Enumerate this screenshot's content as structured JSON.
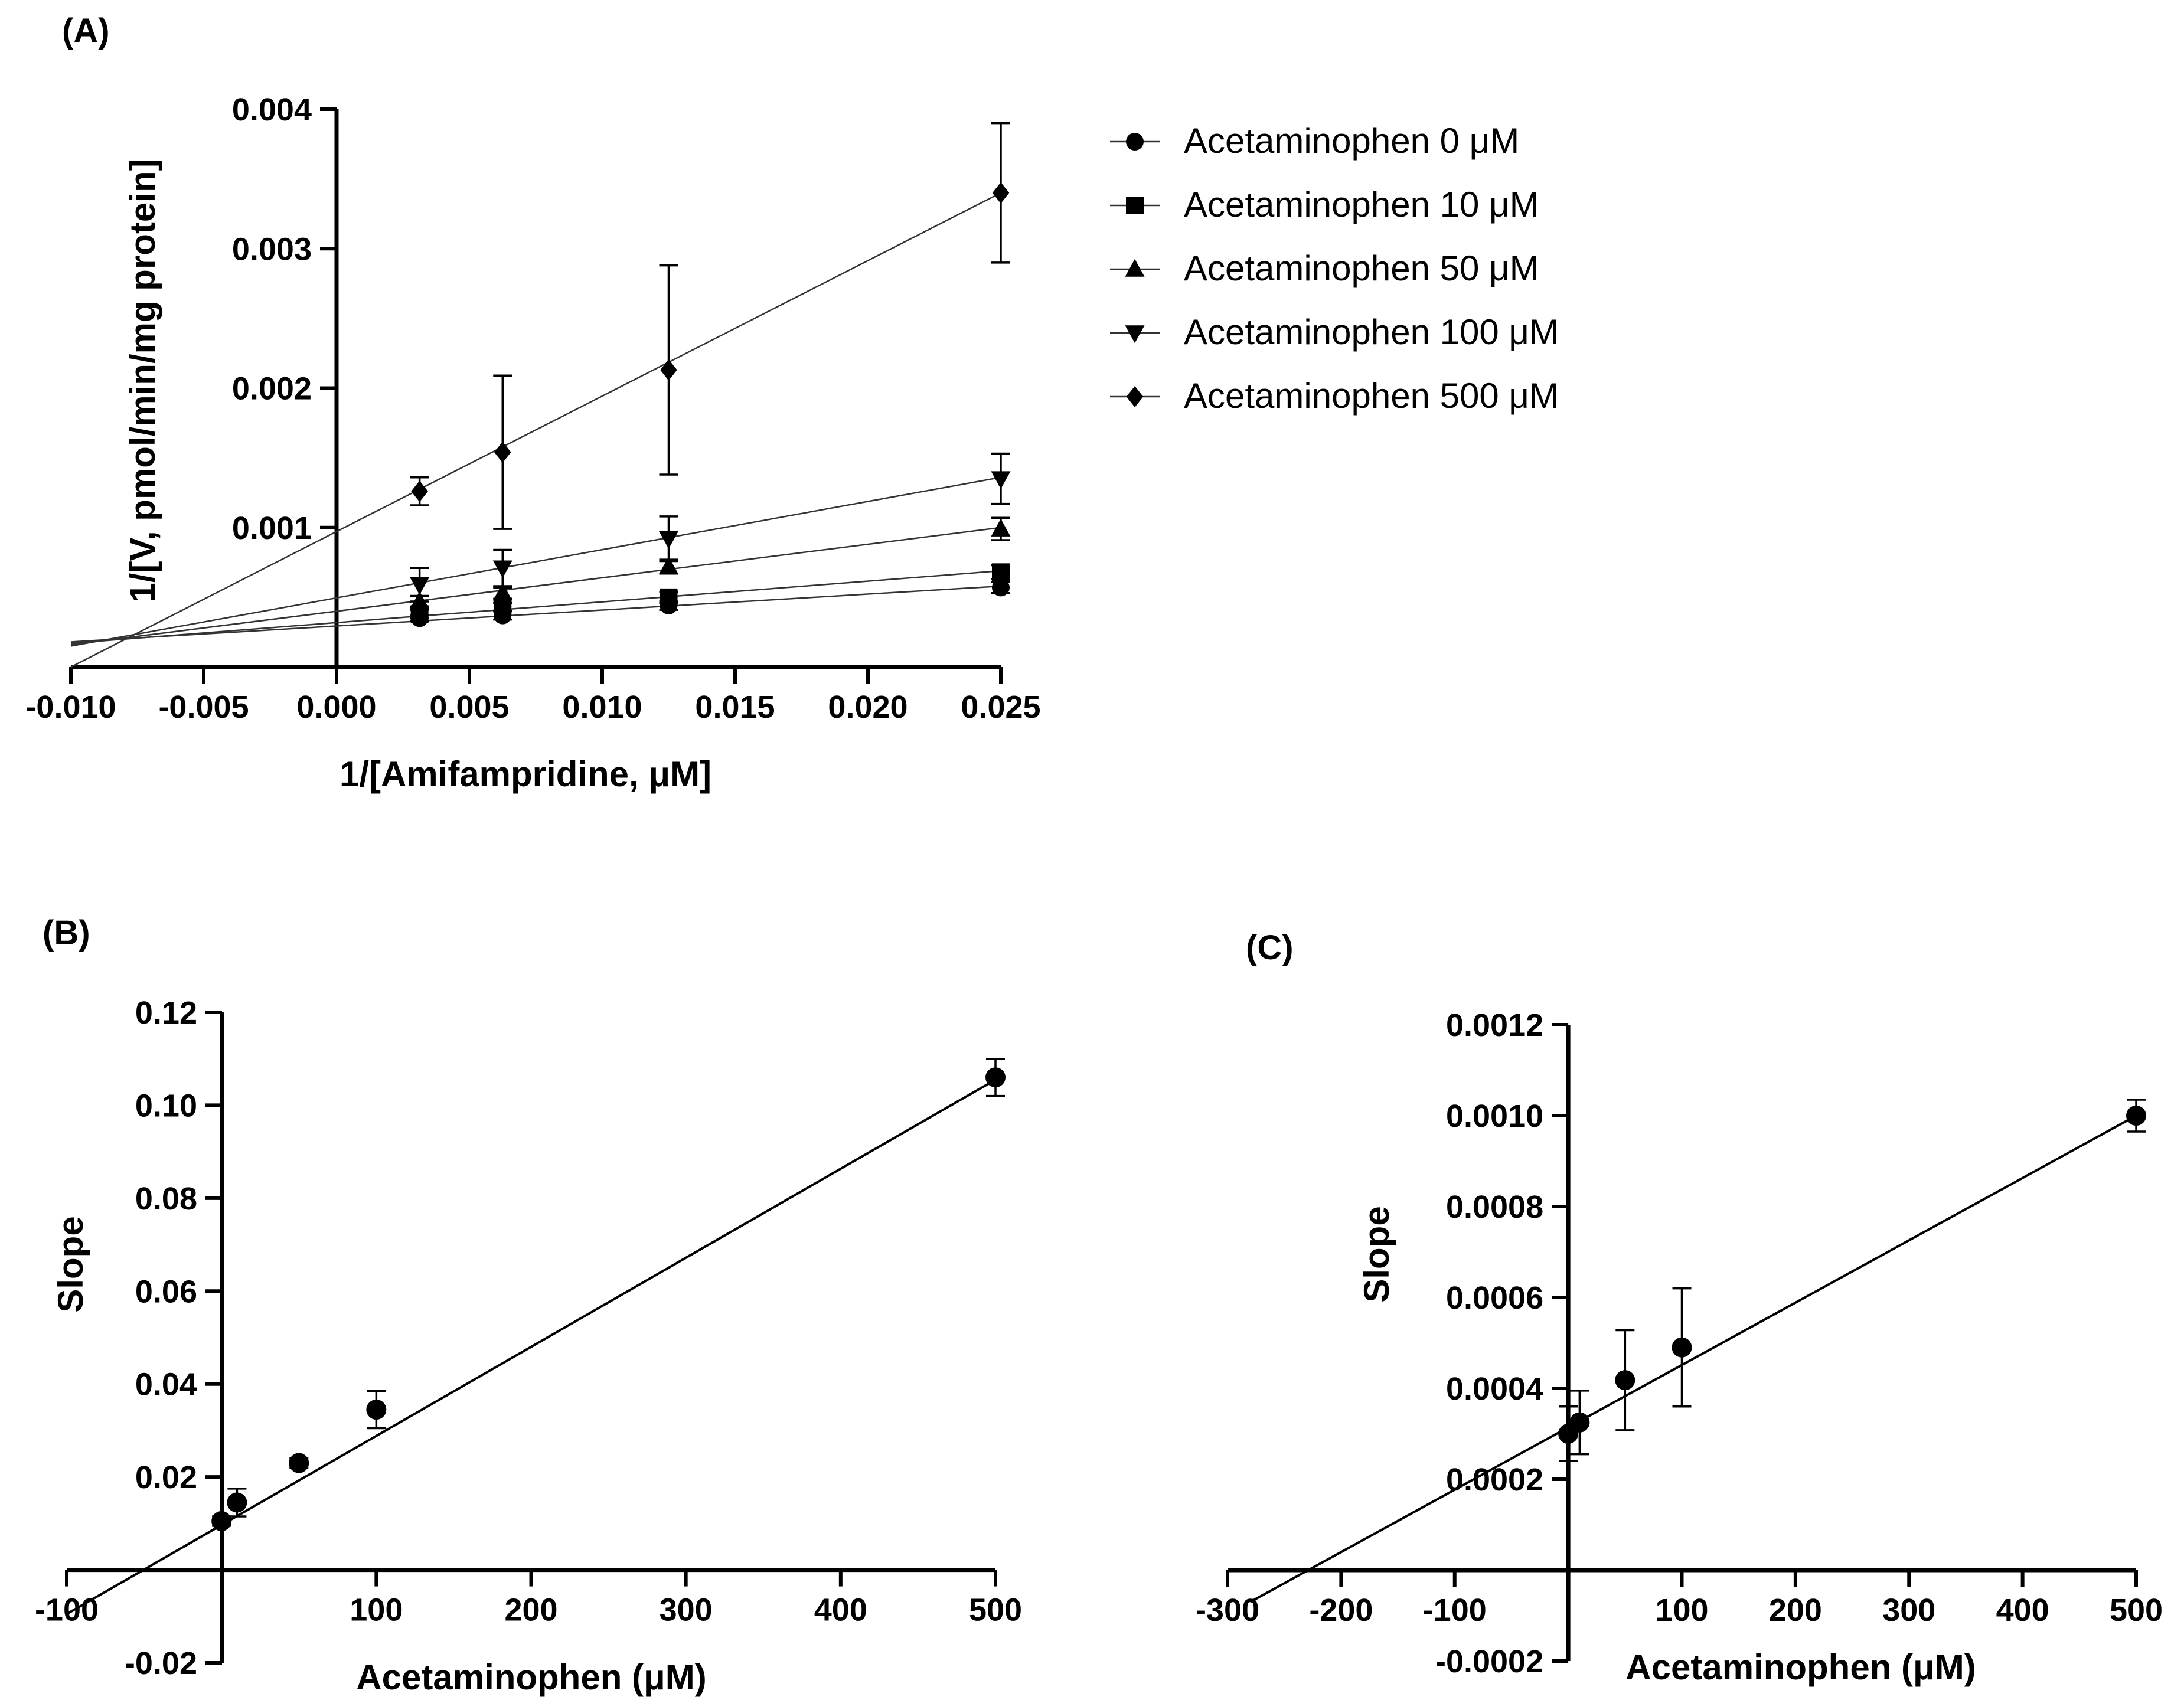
{
  "chart_data": [
    {
      "id": "A",
      "panel_label": "(A)",
      "type": "line",
      "xlabel": "1/[Amifampridine, μM]",
      "ylabel": "1/[V, pmol/min/mg protein]",
      "xlim": [
        -0.01,
        0.025
      ],
      "ylim": [
        0,
        0.004
      ],
      "x_ticks": [
        -0.01,
        -0.005,
        0.0,
        0.005,
        0.01,
        0.015,
        0.02,
        0.025
      ],
      "x_tick_labels": [
        "-0.010",
        "-0.005",
        "0.000",
        "0.005",
        "0.010",
        "0.015",
        "0.020",
        "0.025"
      ],
      "y_ticks": [
        0.001,
        0.002,
        0.003,
        0.004
      ],
      "y_tick_labels": [
        "0.001",
        "0.002",
        "0.003",
        "0.004"
      ],
      "x": [
        0.003125,
        0.00625,
        0.0125,
        0.025
      ],
      "series": [
        {
          "name": "Acetaminophen 0 μM",
          "marker": "circle",
          "values": [
            0.00035,
            0.00037,
            0.00044,
            0.00057
          ],
          "errors": [
            2e-05,
            3e-05,
            3e-05,
            4e-05
          ],
          "fit": [
            -0.01,
            0.00018,
            0.025,
            0.00058
          ]
        },
        {
          "name": "Acetaminophen 10 μM",
          "marker": "square",
          "values": [
            0.00038,
            0.00043,
            0.0005,
            0.00068
          ],
          "errors": [
            3e-05,
            3e-05,
            4e-05,
            5e-05
          ],
          "fit": [
            -0.01,
            0.00017,
            0.025,
            0.00069
          ]
        },
        {
          "name": "Acetaminophen 50 μM",
          "marker": "triangle-up",
          "values": [
            0.00047,
            0.00053,
            0.00072,
            0.00099
          ],
          "errors": [
            4e-05,
            4e-05,
            5e-05,
            8e-05
          ],
          "fit": [
            -0.01,
            0.00016,
            0.025,
            0.001
          ]
        },
        {
          "name": "Acetaminophen 100 μM",
          "marker": "triangle-down",
          "values": [
            0.00059,
            0.00071,
            0.00092,
            0.00135
          ],
          "errors": [
            0.00012,
            0.00013,
            0.00016,
            0.00018
          ],
          "fit": [
            -0.01,
            0.00015,
            0.025,
            0.00136
          ]
        },
        {
          "name": "Acetaminophen 500 μM",
          "marker": "diamond",
          "values": [
            0.00126,
            0.00154,
            0.00213,
            0.0034
          ],
          "errors": [
            0.0001,
            0.00055,
            0.00075,
            0.0005
          ],
          "fit": [
            -0.01,
            0.0,
            0.025,
            0.0034
          ]
        }
      ]
    },
    {
      "id": "B",
      "panel_label": "(B)",
      "type": "scatter",
      "xlabel": "Acetaminophen (μM)",
      "ylabel": "Slope",
      "xlim": [
        -100,
        500
      ],
      "ylim": [
        -0.02,
        0.12
      ],
      "x_ticks": [
        -100,
        100,
        200,
        300,
        400,
        500
      ],
      "x_tick_labels": [
        "-100",
        "100",
        "200",
        "300",
        "400",
        "500"
      ],
      "y_ticks": [
        -0.02,
        0.02,
        0.04,
        0.06,
        0.08,
        0.1,
        0.12
      ],
      "y_tick_labels": [
        "-0.02",
        "0.02",
        "0.04",
        "0.06",
        "0.08",
        "0.10",
        "0.12"
      ],
      "x": [
        0,
        10,
        50,
        100,
        500
      ],
      "values": [
        0.0105,
        0.0145,
        0.023,
        0.0345,
        0.106
      ],
      "errors": [
        0.001,
        0.003,
        0.001,
        0.004,
        0.004
      ],
      "fit": [
        -100,
        -0.0095,
        500,
        0.1055
      ]
    },
    {
      "id": "C",
      "panel_label": "(C)",
      "type": "scatter",
      "xlabel": "Acetaminophen (μM)",
      "ylabel": "Slope",
      "xlim": [
        -300,
        500
      ],
      "ylim": [
        -0.0002,
        0.0012
      ],
      "x_ticks": [
        -300,
        -200,
        -100,
        100,
        200,
        300,
        400,
        500
      ],
      "x_tick_labels": [
        "-300",
        "-200",
        "-100",
        "100",
        "200",
        "300",
        "400",
        "500"
      ],
      "y_ticks": [
        -0.0002,
        0.0002,
        0.0004,
        0.0006,
        0.0008,
        0.001,
        0.0012
      ],
      "y_tick_labels": [
        "-0.0002",
        "0.0002",
        "0.0004",
        "0.0006",
        "0.0008",
        "0.0010",
        "0.0012"
      ],
      "x": [
        0,
        10,
        50,
        100,
        500
      ],
      "values": [
        0.0003,
        0.000325,
        0.000418,
        0.00049,
        0.001
      ],
      "errors": [
        6e-05,
        7e-05,
        0.00011,
        0.00013,
        3.5e-05
      ],
      "fit": [
        -280,
        -7e-05,
        500,
        0.001
      ]
    }
  ]
}
